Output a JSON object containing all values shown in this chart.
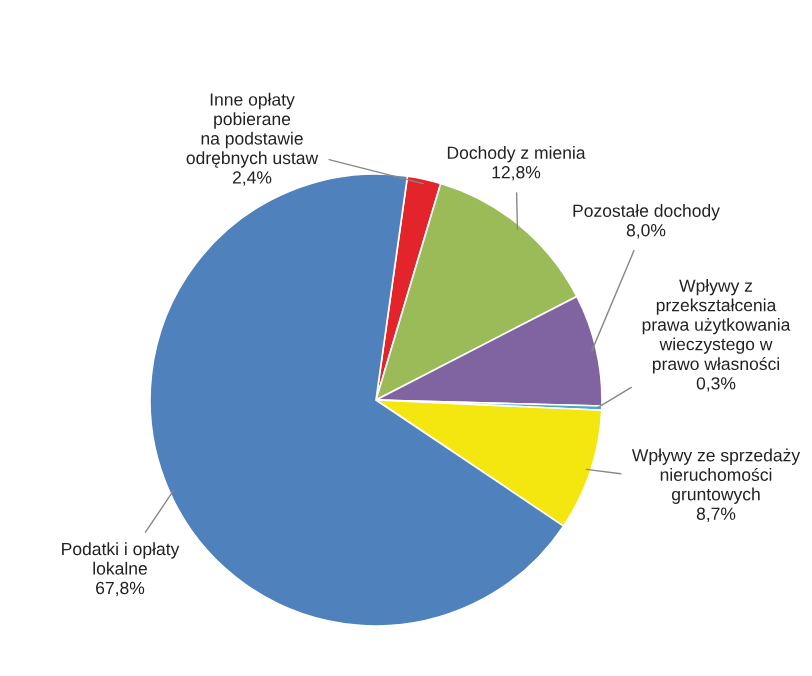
{
  "chart_data": {
    "type": "pie",
    "categories": [
      "Inne opłaty\npobierane\nna podstawie\nodrębnych ustaw",
      "Dochody z mienia",
      "Pozostałe dochody",
      "Wpływy z\nprzekształcenia\nprawa użytkowania\nwieczystego w\nprawo własności",
      "Wpływy ze sprzedaży\nnieruchomości\ngruntowych",
      "Podatki i opłaty\nlokalne"
    ],
    "values": [
      2.4,
      12.8,
      8.0,
      0.3,
      8.7,
      67.8
    ],
    "value_labels": [
      "2,4%",
      "12,8%",
      "8,0%",
      "0,3%",
      "8,7%",
      "67,8%"
    ],
    "colors": [
      "#e3242b",
      "#9bbb59",
      "#8064a2",
      "#4bacc6",
      "#f4e60f",
      "#4f81bd"
    ],
    "legend": false
  }
}
